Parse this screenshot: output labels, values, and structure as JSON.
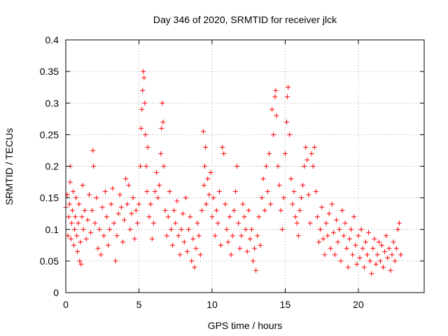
{
  "chart_data": {
    "type": "scatter",
    "title": "Day 346 of 2020, SRMTID for receiver jlck",
    "xlabel": "GPS time / hours",
    "ylabel": "SRMTID / TECUs",
    "xlim": [
      0,
      24.5
    ],
    "ylim": [
      0,
      0.4
    ],
    "x_ticks": [
      0,
      5,
      10,
      15,
      20
    ],
    "y_ticks": [
      0,
      0.05,
      0.1,
      0.15,
      0.2,
      0.25,
      0.3,
      0.35,
      0.4
    ],
    "x_tick_labels": [
      "0",
      "5",
      "10",
      "15",
      "20"
    ],
    "y_tick_labels": [
      "0",
      "0.05",
      "0.1",
      "0.15",
      "0.2",
      "0.25",
      "0.3",
      "0.35",
      "0.4"
    ],
    "grid": true,
    "marker": "plus",
    "marker_color": "#ff0000",
    "series": [
      {
        "name": "SRMTID",
        "points": [
          [
            0.0,
            0.135
          ],
          [
            0.1,
            0.155
          ],
          [
            0.15,
            0.09
          ],
          [
            0.2,
            0.12
          ],
          [
            0.25,
            0.14
          ],
          [
            0.3,
            0.175
          ],
          [
            0.3,
            0.2
          ],
          [
            0.35,
            0.085
          ],
          [
            0.4,
            0.11
          ],
          [
            0.45,
            0.13
          ],
          [
            0.5,
            0.16
          ],
          [
            0.55,
            0.075
          ],
          [
            0.6,
            0.1
          ],
          [
            0.65,
            0.12
          ],
          [
            0.7,
            0.15
          ],
          [
            0.75,
            0.09
          ],
          [
            0.8,
            0.065
          ],
          [
            0.85,
            0.11
          ],
          [
            0.9,
            0.14
          ],
          [
            0.95,
            0.05
          ],
          [
            1.0,
            0.08
          ],
          [
            1.05,
            0.045
          ],
          [
            1.1,
            0.12
          ],
          [
            1.15,
            0.17
          ],
          [
            1.2,
            0.1
          ],
          [
            1.3,
            0.13
          ],
          [
            1.4,
            0.085
          ],
          [
            1.5,
            0.115
          ],
          [
            1.6,
            0.155
          ],
          [
            1.7,
            0.095
          ],
          [
            1.8,
            0.13
          ],
          [
            1.85,
            0.225
          ],
          [
            1.9,
            0.2
          ],
          [
            2.0,
            0.11
          ],
          [
            2.1,
            0.15
          ],
          [
            2.2,
            0.07
          ],
          [
            2.3,
            0.1
          ],
          [
            2.4,
            0.06
          ],
          [
            2.5,
            0.135
          ],
          [
            2.6,
            0.09
          ],
          [
            2.7,
            0.16
          ],
          [
            2.8,
            0.12
          ],
          [
            2.9,
            0.075
          ],
          [
            3.0,
            0.1
          ],
          [
            3.1,
            0.14
          ],
          [
            3.2,
            0.165
          ],
          [
            3.3,
            0.11
          ],
          [
            3.4,
            0.05
          ],
          [
            3.5,
            0.09
          ],
          [
            3.6,
            0.125
          ],
          [
            3.7,
            0.155
          ],
          [
            3.8,
            0.135
          ],
          [
            3.9,
            0.08
          ],
          [
            4.0,
            0.115
          ],
          [
            4.1,
            0.18
          ],
          [
            4.2,
            0.14
          ],
          [
            4.3,
            0.17
          ],
          [
            4.4,
            0.1
          ],
          [
            4.5,
            0.125
          ],
          [
            4.6,
            0.15
          ],
          [
            4.7,
            0.085
          ],
          [
            4.8,
            0.13
          ],
          [
            4.9,
            0.11
          ],
          [
            5.0,
            0.14
          ],
          [
            5.1,
            0.2
          ],
          [
            5.15,
            0.26
          ],
          [
            5.2,
            0.29
          ],
          [
            5.25,
            0.32
          ],
          [
            5.3,
            0.35
          ],
          [
            5.35,
            0.34
          ],
          [
            5.4,
            0.3
          ],
          [
            5.45,
            0.25
          ],
          [
            5.5,
            0.2
          ],
          [
            5.55,
            0.16
          ],
          [
            5.6,
            0.23
          ],
          [
            5.7,
            0.12
          ],
          [
            5.8,
            0.14
          ],
          [
            5.9,
            0.085
          ],
          [
            6.0,
            0.11
          ],
          [
            6.1,
            0.16
          ],
          [
            6.2,
            0.19
          ],
          [
            6.3,
            0.15
          ],
          [
            6.4,
            0.17
          ],
          [
            6.5,
            0.22
          ],
          [
            6.55,
            0.26
          ],
          [
            6.6,
            0.3
          ],
          [
            6.65,
            0.27
          ],
          [
            6.7,
            0.2
          ],
          [
            6.8,
            0.13
          ],
          [
            6.9,
            0.09
          ],
          [
            7.0,
            0.12
          ],
          [
            7.1,
            0.16
          ],
          [
            7.2,
            0.1
          ],
          [
            7.3,
            0.075
          ],
          [
            7.4,
            0.13
          ],
          [
            7.5,
            0.11
          ],
          [
            7.6,
            0.145
          ],
          [
            7.7,
            0.09
          ],
          [
            7.8,
            0.06
          ],
          [
            7.9,
            0.1
          ],
          [
            8.0,
            0.125
          ],
          [
            8.1,
            0.08
          ],
          [
            8.2,
            0.15
          ],
          [
            8.3,
            0.065
          ],
          [
            8.4,
            0.1
          ],
          [
            8.5,
            0.12
          ],
          [
            8.6,
            0.05
          ],
          [
            8.7,
            0.085
          ],
          [
            8.8,
            0.04
          ],
          [
            8.9,
            0.07
          ],
          [
            9.0,
            0.11
          ],
          [
            9.1,
            0.09
          ],
          [
            9.2,
            0.06
          ],
          [
            9.3,
            0.13
          ],
          [
            9.4,
            0.255
          ],
          [
            9.45,
            0.17
          ],
          [
            9.5,
            0.2
          ],
          [
            9.55,
            0.23
          ],
          [
            9.6,
            0.14
          ],
          [
            9.7,
            0.18
          ],
          [
            9.8,
            0.155
          ],
          [
            9.9,
            0.19
          ],
          [
            10.0,
            0.12
          ],
          [
            10.1,
            0.15
          ],
          [
            10.2,
            0.09
          ],
          [
            10.3,
            0.13
          ],
          [
            10.4,
            0.11
          ],
          [
            10.5,
            0.16
          ],
          [
            10.6,
            0.075
          ],
          [
            10.7,
            0.23
          ],
          [
            10.8,
            0.22
          ],
          [
            10.9,
            0.14
          ],
          [
            11.0,
            0.1
          ],
          [
            11.1,
            0.08
          ],
          [
            11.2,
            0.12
          ],
          [
            11.3,
            0.06
          ],
          [
            11.4,
            0.09
          ],
          [
            11.5,
            0.13
          ],
          [
            11.6,
            0.16
          ],
          [
            11.7,
            0.2
          ],
          [
            11.8,
            0.11
          ],
          [
            11.9,
            0.07
          ],
          [
            12.0,
            0.09
          ],
          [
            12.1,
            0.14
          ],
          [
            12.2,
            0.12
          ],
          [
            12.3,
            0.1
          ],
          [
            12.4,
            0.065
          ],
          [
            12.5,
            0.13
          ],
          [
            12.6,
            0.085
          ],
          [
            12.7,
            0.1
          ],
          [
            12.8,
            0.05
          ],
          [
            12.9,
            0.07
          ],
          [
            13.0,
            0.035
          ],
          [
            13.1,
            0.09
          ],
          [
            13.2,
            0.12
          ],
          [
            13.3,
            0.075
          ],
          [
            13.4,
            0.15
          ],
          [
            13.5,
            0.18
          ],
          [
            13.6,
            0.13
          ],
          [
            13.7,
            0.2
          ],
          [
            13.8,
            0.16
          ],
          [
            13.9,
            0.22
          ],
          [
            14.0,
            0.14
          ],
          [
            14.1,
            0.29
          ],
          [
            14.2,
            0.25
          ],
          [
            14.3,
            0.31
          ],
          [
            14.35,
            0.32
          ],
          [
            14.4,
            0.28
          ],
          [
            14.5,
            0.2
          ],
          [
            14.6,
            0.17
          ],
          [
            14.7,
            0.13
          ],
          [
            14.8,
            0.1
          ],
          [
            14.9,
            0.15
          ],
          [
            15.0,
            0.22
          ],
          [
            15.1,
            0.27
          ],
          [
            15.15,
            0.31
          ],
          [
            15.2,
            0.325
          ],
          [
            15.3,
            0.25
          ],
          [
            15.4,
            0.18
          ],
          [
            15.5,
            0.14
          ],
          [
            15.6,
            0.16
          ],
          [
            15.7,
            0.12
          ],
          [
            15.8,
            0.11
          ],
          [
            15.9,
            0.09
          ],
          [
            16.0,
            0.13
          ],
          [
            16.1,
            0.15
          ],
          [
            16.2,
            0.17
          ],
          [
            16.3,
            0.2
          ],
          [
            16.4,
            0.23
          ],
          [
            16.5,
            0.21
          ],
          [
            16.6,
            0.155
          ],
          [
            16.7,
            0.11
          ],
          [
            16.8,
            0.22
          ],
          [
            16.9,
            0.2
          ],
          [
            17.0,
            0.23
          ],
          [
            17.1,
            0.16
          ],
          [
            17.2,
            0.12
          ],
          [
            17.3,
            0.08
          ],
          [
            17.4,
            0.1
          ],
          [
            17.5,
            0.135
          ],
          [
            17.6,
            0.085
          ],
          [
            17.7,
            0.06
          ],
          [
            17.8,
            0.11
          ],
          [
            17.9,
            0.09
          ],
          [
            18.0,
            0.125
          ],
          [
            18.1,
            0.07
          ],
          [
            18.2,
            0.14
          ],
          [
            18.3,
            0.095
          ],
          [
            18.4,
            0.06
          ],
          [
            18.5,
            0.115
          ],
          [
            18.6,
            0.08
          ],
          [
            18.7,
            0.1
          ],
          [
            18.8,
            0.05
          ],
          [
            18.9,
            0.13
          ],
          [
            19.0,
            0.09
          ],
          [
            19.1,
            0.11
          ],
          [
            19.2,
            0.07
          ],
          [
            19.3,
            0.04
          ],
          [
            19.4,
            0.085
          ],
          [
            19.5,
            0.1
          ],
          [
            19.6,
            0.06
          ],
          [
            19.7,
            0.12
          ],
          [
            19.8,
            0.075
          ],
          [
            19.9,
            0.045
          ],
          [
            20.0,
            0.09
          ],
          [
            20.1,
            0.055
          ],
          [
            20.2,
            0.1
          ],
          [
            20.3,
            0.07
          ],
          [
            20.4,
            0.04
          ],
          [
            20.5,
            0.08
          ],
          [
            20.6,
            0.06
          ],
          [
            20.7,
            0.095
          ],
          [
            20.8,
            0.05
          ],
          [
            20.9,
            0.03
          ],
          [
            21.0,
            0.07
          ],
          [
            21.1,
            0.085
          ],
          [
            21.2,
            0.045
          ],
          [
            21.3,
            0.06
          ],
          [
            21.4,
            0.08
          ],
          [
            21.5,
            0.05
          ],
          [
            21.6,
            0.075
          ],
          [
            21.7,
            0.04
          ],
          [
            21.8,
            0.065
          ],
          [
            21.9,
            0.09
          ],
          [
            22.0,
            0.055
          ],
          [
            22.1,
            0.07
          ],
          [
            22.2,
            0.035
          ],
          [
            22.3,
            0.06
          ],
          [
            22.4,
            0.08
          ],
          [
            22.5,
            0.05
          ],
          [
            22.6,
            0.07
          ],
          [
            22.7,
            0.1
          ],
          [
            22.8,
            0.11
          ],
          [
            22.9,
            0.06
          ]
        ]
      }
    ]
  }
}
